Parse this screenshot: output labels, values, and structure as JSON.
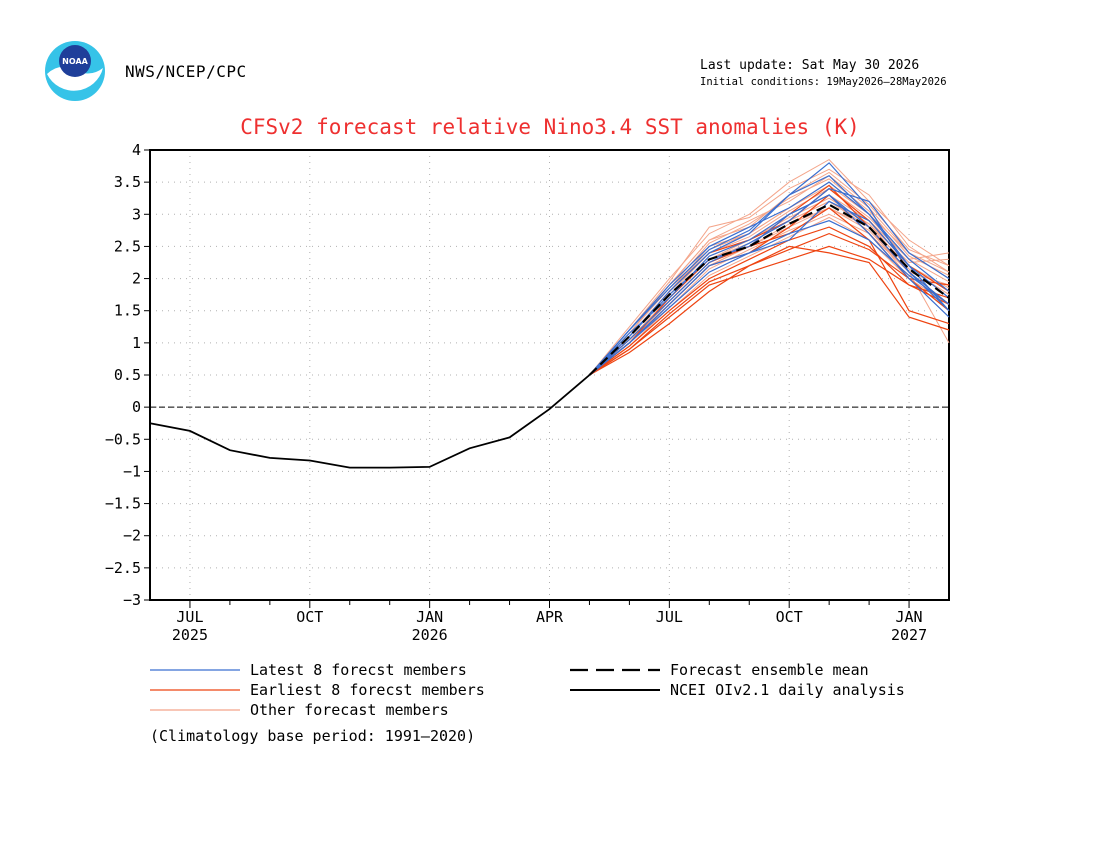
{
  "header": {
    "agency": "NWS/NCEP/CPC",
    "logo_text": "NOAA",
    "last_update": "Last update: Sat May 30 2026",
    "initial_conditions": "Initial conditions: 19May2026—28May2026"
  },
  "footnote": "(Climatology base period: 1991—2020)",
  "chart_data": {
    "type": "line",
    "title": "CFSv2 forecast relative Nino3.4 SST anomalies (K)",
    "xlabel": "",
    "ylabel": "",
    "ylim": [
      -3,
      4
    ],
    "y_ticks": [
      "4",
      "3.5",
      "3",
      "2.5",
      "2",
      "1.5",
      "1",
      "0.5",
      "0",
      "−0.5",
      "−1",
      "−1.5",
      "−2",
      "−2.5",
      "−3"
    ],
    "y_tick_values": [
      4,
      3.5,
      3,
      2.5,
      2,
      1.5,
      1,
      0.5,
      0,
      -0.5,
      -1,
      -1.5,
      -2,
      -2.5,
      -3
    ],
    "x_start": "2025-06",
    "x_end": "2027-02",
    "x_ticks": [
      {
        "month": "JUL",
        "year": "2025",
        "date": "2025-07-01"
      },
      {
        "month": "OCT",
        "year": "",
        "date": "2025-10-01"
      },
      {
        "month": "JAN",
        "year": "2026",
        "date": "2026-01-01"
      },
      {
        "month": "APR",
        "year": "",
        "date": "2026-04-01"
      },
      {
        "month": "JUL",
        "year": "",
        "date": "2026-07-01"
      },
      {
        "month": "OCT",
        "year": "",
        "date": "2026-10-01"
      },
      {
        "month": "JAN",
        "year": "2027",
        "date": "2027-01-01"
      }
    ],
    "grid": true,
    "zero_line": true,
    "legend": [
      {
        "label": "Latest 8 forecst members",
        "style": "latest"
      },
      {
        "label": "Earliest 8 forecst members",
        "style": "earliest"
      },
      {
        "label": "Other forecast members",
        "style": "other"
      },
      {
        "label": "Forecast ensemble mean",
        "style": "mean"
      },
      {
        "label": "NCEI OIv2.1 daily analysis",
        "style": "obs"
      }
    ],
    "colors": {
      "latest": "#3a6fd0",
      "earliest": "#ee4411",
      "other": "#f4a58a",
      "mean": "#000000",
      "obs": "#000000"
    },
    "observed": {
      "name": "NCEI OIv2.1 daily analysis",
      "x": [
        "2025-06-01",
        "2025-07-01",
        "2025-08-01",
        "2025-09-01",
        "2025-10-01",
        "2025-11-01",
        "2025-12-01",
        "2026-01-01",
        "2026-02-01",
        "2026-03-01",
        "2026-04-01",
        "2026-05-01"
      ],
      "y": [
        -0.25,
        -0.37,
        -0.67,
        -0.79,
        -0.83,
        -0.94,
        -0.94,
        -0.93,
        -0.64,
        -0.47,
        -0.03,
        0.5
      ]
    },
    "forecast_months": [
      "2026-05-01",
      "2026-06-01",
      "2026-07-01",
      "2026-08-01",
      "2026-09-01",
      "2026-10-01",
      "2026-11-01",
      "2026-12-01",
      "2027-01-01",
      "2027-02-01"
    ],
    "ensemble_mean": {
      "name": "Forecast ensemble mean",
      "y": [
        0.5,
        1.1,
        1.75,
        2.3,
        2.5,
        2.85,
        3.15,
        2.8,
        2.15,
        1.7
      ]
    },
    "latest_members": [
      [
        0.5,
        1.2,
        1.9,
        2.5,
        2.8,
        3.1,
        3.5,
        3.0,
        2.3,
        1.8
      ],
      [
        0.5,
        1.1,
        1.8,
        2.4,
        2.7,
        3.3,
        3.8,
        3.1,
        2.1,
        1.6
      ],
      [
        0.5,
        1.0,
        1.6,
        2.2,
        2.4,
        2.6,
        3.2,
        2.9,
        2.2,
        1.5
      ],
      [
        0.5,
        1.15,
        1.7,
        2.35,
        2.6,
        3.0,
        3.3,
        2.7,
        2.0,
        1.4
      ],
      [
        0.5,
        1.05,
        1.65,
        2.25,
        2.55,
        2.9,
        3.4,
        3.2,
        2.4,
        2.0
      ],
      [
        0.5,
        1.2,
        1.85,
        2.45,
        2.75,
        3.3,
        3.6,
        3.0,
        2.2,
        1.7
      ],
      [
        0.5,
        1.0,
        1.55,
        2.1,
        2.4,
        2.7,
        2.9,
        2.6,
        2.05,
        1.6
      ],
      [
        0.5,
        1.1,
        1.75,
        2.3,
        2.5,
        3.0,
        3.3,
        2.8,
        2.1,
        1.5
      ]
    ],
    "earliest_members": [
      [
        0.5,
        0.9,
        1.4,
        1.9,
        2.1,
        2.3,
        2.5,
        2.3,
        1.9,
        1.6
      ],
      [
        0.5,
        1.0,
        1.6,
        2.2,
        2.4,
        2.8,
        3.3,
        2.7,
        2.0,
        1.5
      ],
      [
        0.5,
        0.85,
        1.3,
        1.8,
        2.2,
        2.5,
        2.4,
        2.25,
        1.4,
        1.2
      ],
      [
        0.5,
        1.1,
        1.8,
        2.4,
        2.6,
        2.9,
        3.4,
        2.9,
        2.2,
        1.8
      ],
      [
        0.5,
        0.95,
        1.5,
        2.0,
        2.3,
        2.6,
        2.8,
        2.5,
        1.9,
        1.7
      ],
      [
        0.5,
        1.0,
        1.7,
        2.3,
        2.5,
        2.7,
        3.1,
        2.6,
        1.5,
        1.3
      ],
      [
        0.5,
        0.9,
        1.45,
        1.95,
        2.2,
        2.45,
        2.7,
        2.45,
        2.0,
        1.9
      ],
      [
        0.5,
        1.05,
        1.65,
        2.25,
        2.5,
        3.0,
        3.45,
        2.8,
        2.1,
        1.6
      ]
    ],
    "other_members": [
      [
        0.5,
        1.25,
        2.0,
        2.7,
        3.0,
        3.5,
        3.85,
        3.2,
        2.6,
        2.2
      ],
      [
        0.5,
        1.15,
        1.9,
        2.6,
        2.9,
        3.2,
        3.6,
        3.1,
        2.4,
        2.0
      ],
      [
        0.5,
        1.05,
        1.7,
        2.3,
        2.6,
        3.0,
        3.3,
        2.9,
        2.3,
        2.4
      ],
      [
        0.5,
        1.1,
        1.8,
        2.5,
        2.7,
        3.1,
        3.5,
        3.0,
        2.2,
        1.8
      ],
      [
        0.5,
        1.0,
        1.6,
        2.2,
        2.5,
        2.8,
        3.1,
        2.8,
        2.0,
        1.6
      ],
      [
        0.5,
        0.95,
        1.55,
        2.15,
        2.45,
        2.75,
        3.0,
        2.7,
        2.1,
        1.9
      ],
      [
        0.5,
        1.2,
        1.95,
        2.8,
        2.95,
        3.4,
        3.7,
        3.3,
        2.5,
        2.1
      ],
      [
        0.5,
        1.0,
        1.65,
        2.25,
        2.55,
        2.9,
        3.2,
        2.85,
        2.25,
        2.3
      ],
      [
        0.5,
        1.1,
        1.75,
        2.4,
        2.65,
        3.05,
        3.4,
        2.95,
        2.3,
        1.95
      ],
      [
        0.5,
        0.95,
        1.5,
        2.05,
        2.35,
        2.65,
        2.95,
        2.6,
        2.0,
        1.5
      ],
      [
        0.5,
        1.15,
        1.85,
        2.55,
        2.85,
        3.25,
        3.55,
        3.05,
        2.35,
        2.05
      ],
      [
        0.5,
        1.05,
        1.7,
        2.35,
        2.6,
        2.95,
        3.25,
        2.85,
        2.15,
        1.75
      ],
      [
        0.5,
        1.0,
        1.6,
        2.2,
        2.5,
        2.85,
        3.1,
        2.75,
        2.1,
        1.0
      ],
      [
        0.5,
        1.1,
        1.8,
        2.45,
        2.7,
        3.1,
        3.45,
        3.0,
        2.4,
        2.1
      ],
      [
        0.5,
        1.05,
        1.7,
        2.3,
        2.55,
        2.9,
        3.2,
        2.8,
        2.2,
        1.85
      ],
      [
        0.5,
        1.2,
        1.9,
        2.6,
        2.8,
        3.3,
        3.65,
        3.15,
        2.45,
        2.2
      ]
    ]
  }
}
